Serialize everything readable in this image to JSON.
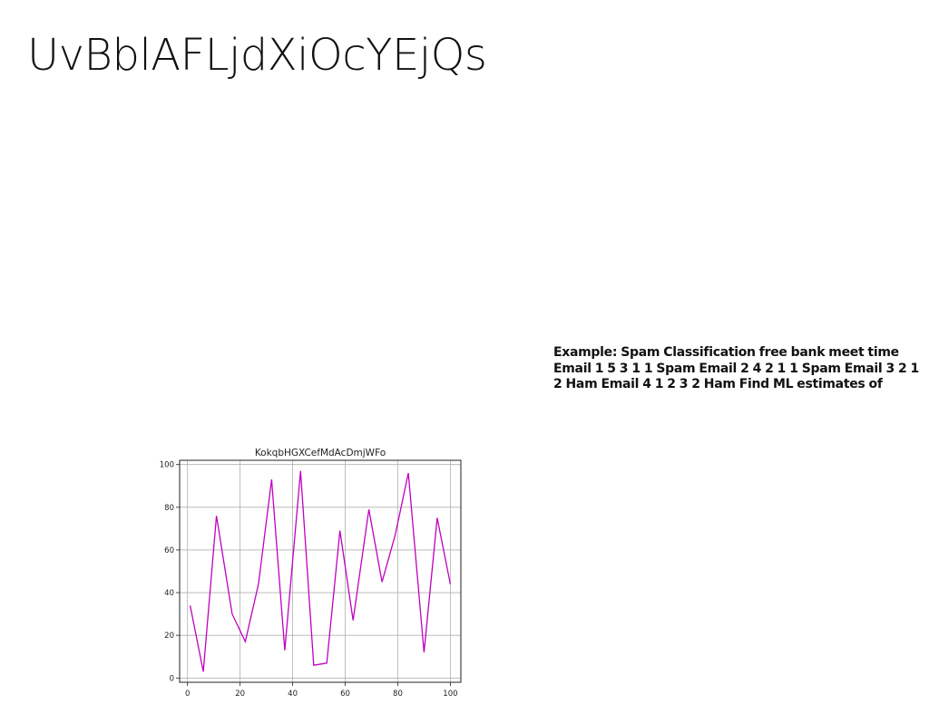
{
  "slide": {
    "title": "UvBblAFLjdXiOcYEjQs",
    "body": "Example: Spam Classification free bank meet time Email 1 5 3 1 1 Spam Email 2 4 2 1 1 Spam Email 3 2 1 2 Ham Email 4 1 2 3 2 Ham Find ML estimates of"
  },
  "colors": {
    "line": "#c000c0",
    "grid": "#b0b0b0",
    "axis": "#222222"
  },
  "chart_data": {
    "type": "line",
    "title": "KokqbHGXCefMdAcDmjWFo",
    "xlabel": "",
    "ylabel": "",
    "xlim": [
      -3,
      104
    ],
    "ylim": [
      -2,
      102
    ],
    "xticks": [
      0,
      20,
      40,
      60,
      80,
      100
    ],
    "yticks": [
      0,
      20,
      40,
      60,
      80,
      100
    ],
    "grid": true,
    "series": [
      {
        "x": [
          1,
          6,
          11,
          17,
          22,
          27,
          32,
          37,
          43,
          48,
          53,
          58,
          63,
          69,
          74,
          79,
          84,
          90,
          95,
          100
        ],
        "y": [
          34,
          3,
          76,
          30,
          17,
          44,
          93,
          13,
          97,
          6,
          7,
          69,
          27,
          79,
          45,
          67,
          96,
          12,
          75,
          44
        ]
      }
    ]
  }
}
